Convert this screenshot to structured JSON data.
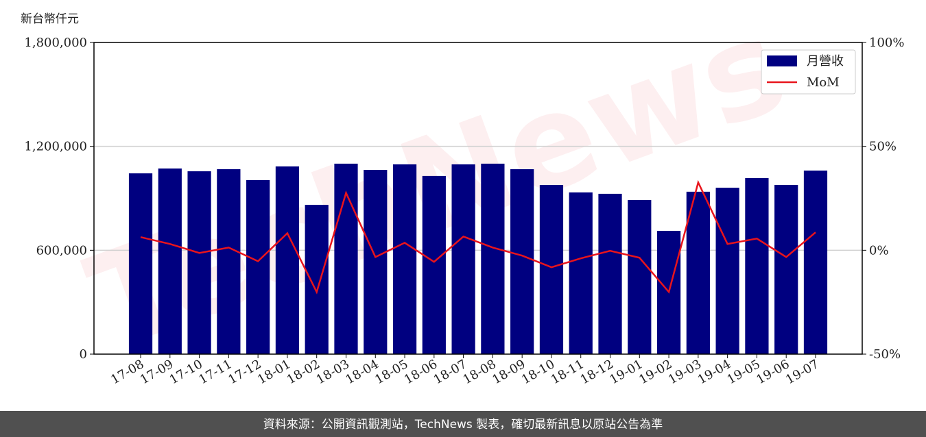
{
  "chart_data": {
    "type": "bar",
    "y_label": "新台幣仟元",
    "watermark": "TechNews",
    "source": "資料來源：公開資訊觀測站，TechNews 製表，確切最新訊息以原站公告為準",
    "categories": [
      "17-08",
      "17-09",
      "17-10",
      "17-11",
      "17-12",
      "18-01",
      "18-02",
      "18-03",
      "18-04",
      "18-05",
      "18-06",
      "18-07",
      "18-08",
      "18-09",
      "18-10",
      "18-11",
      "18-12",
      "19-01",
      "19-02",
      "19-03",
      "19-04",
      "19-05",
      "19-06",
      "19-07"
    ],
    "series": [
      {
        "name": "月營收",
        "type": "bar",
        "axis": "y",
        "color": "#000080",
        "values": [
          1044000,
          1072000,
          1056000,
          1068000,
          1005000,
          1084000,
          862000,
          1100000,
          1064000,
          1096000,
          1029000,
          1096000,
          1100000,
          1068000,
          977000,
          934000,
          926000,
          890000,
          712000,
          938000,
          961000,
          1017000,
          977000,
          1060000
        ]
      },
      {
        "name": "MoM",
        "type": "line",
        "axis": "y2",
        "color": "#e8141c",
        "values": [
          6.3,
          3.0,
          -1.3,
          1.3,
          -5.3,
          8.2,
          -20.1,
          27.6,
          -3.3,
          3.6,
          -5.6,
          6.6,
          1.3,
          -2.6,
          -8.2,
          -3.9,
          -0.3,
          -3.6,
          -20.1,
          32.6,
          3.0,
          5.6,
          -3.3,
          8.6
        ]
      }
    ],
    "ylim": [
      0,
      1800000
    ],
    "yticks": [
      0,
      {
        "value": 600000,
        "label": "600,000"
      },
      {
        "value": 1200000,
        "label": "1,200,000"
      },
      {
        "value": 1800000,
        "label": "1,800,000"
      }
    ],
    "y2lim": [
      -50,
      100
    ],
    "y2ticks": [
      {
        "value": -50,
        "label": "-50%"
      },
      {
        "value": 0,
        "label": "0%"
      },
      {
        "value": 50,
        "label": "50%"
      },
      {
        "value": 100,
        "label": "100%"
      }
    ],
    "grid": true,
    "legend": "upper right"
  }
}
